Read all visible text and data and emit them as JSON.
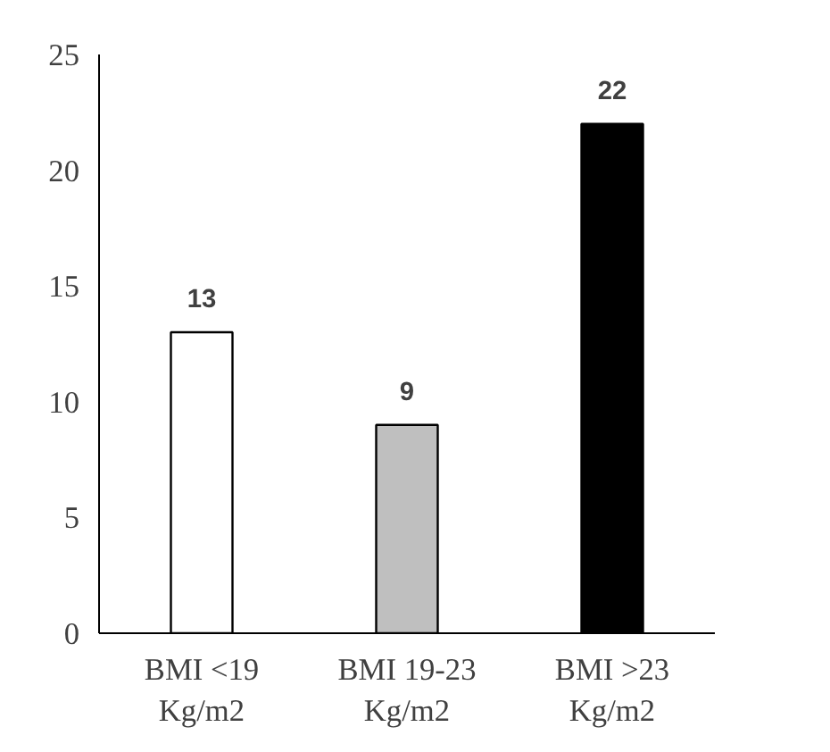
{
  "chart_data": {
    "type": "bar",
    "categories": [
      "BMI <19\nKg/m2",
      "BMI 19-23\nKg/m2",
      "BMI >23\nKg/m2"
    ],
    "values": [
      13,
      9,
      22
    ],
    "colors": [
      "#ffffff",
      "#bfbfbf",
      "#000000"
    ],
    "ylim": [
      0,
      25
    ],
    "yticks": [
      0,
      5,
      10,
      15,
      20,
      25
    ],
    "grid": false,
    "data_labels": true
  }
}
